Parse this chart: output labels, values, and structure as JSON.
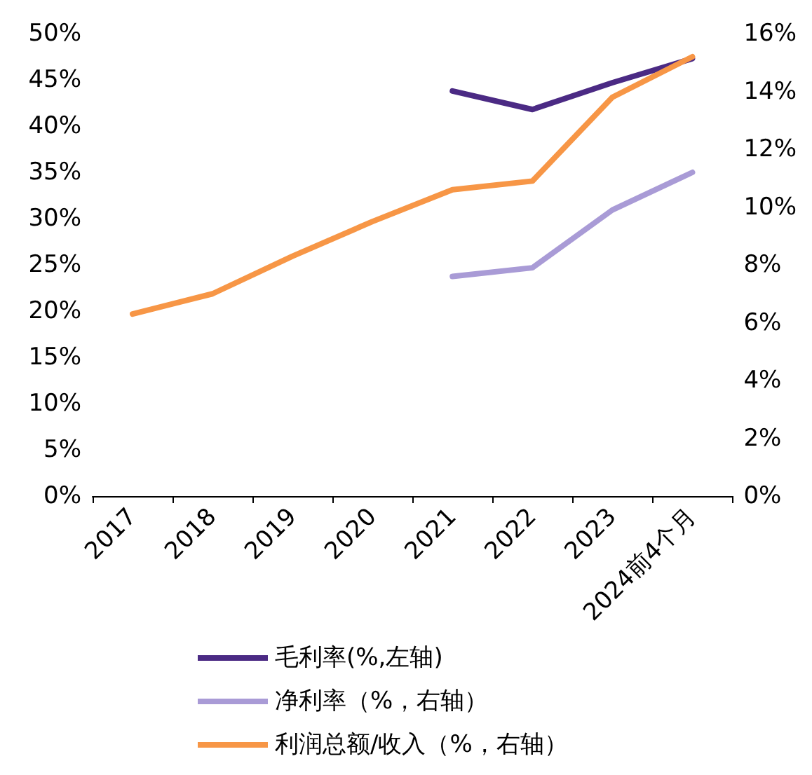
{
  "chart_data": {
    "type": "line",
    "categories": [
      "2017",
      "2018",
      "2019",
      "2020",
      "2021",
      "2022",
      "2023",
      "2024前4个月"
    ],
    "series": [
      {
        "name": "毛利率(%,左轴)",
        "color": "#4b2a84",
        "axis": "y",
        "values": [
          null,
          null,
          null,
          null,
          43.8,
          41.8,
          44.7,
          47.3
        ]
      },
      {
        "name": "净利率（%，右轴）",
        "color": "#a99bd6",
        "axis": "y2",
        "values": [
          null,
          null,
          null,
          null,
          7.6,
          7.9,
          9.9,
          11.2
        ]
      },
      {
        "name": "利润总额/收入（%，右轴）",
        "color": "#f79646",
        "axis": "y2",
        "values": [
          6.3,
          7.0,
          8.3,
          9.5,
          10.6,
          10.9,
          13.8,
          15.2
        ]
      }
    ],
    "ylim": [
      0,
      50
    ],
    "yticks": [
      {
        "value": 0,
        "label": "0%"
      },
      {
        "value": 5,
        "label": "5%"
      },
      {
        "value": 10,
        "label": "10%"
      },
      {
        "value": 15,
        "label": "15%"
      },
      {
        "value": 20,
        "label": "20%"
      },
      {
        "value": 25,
        "label": "25%"
      },
      {
        "value": 30,
        "label": "30%"
      },
      {
        "value": 35,
        "label": "35%"
      },
      {
        "value": 40,
        "label": "40%"
      },
      {
        "value": 45,
        "label": "45%"
      },
      {
        "value": 50,
        "label": "50%"
      }
    ],
    "y2lim": [
      0,
      16
    ],
    "y2ticks": [
      {
        "value": 0,
        "label": "0%"
      },
      {
        "value": 2,
        "label": "2%"
      },
      {
        "value": 4,
        "label": "4%"
      },
      {
        "value": 6,
        "label": "6%"
      },
      {
        "value": 8,
        "label": "8%"
      },
      {
        "value": 10,
        "label": "10%"
      },
      {
        "value": 12,
        "label": "12%"
      },
      {
        "value": 14,
        "label": "14%"
      },
      {
        "value": 16,
        "label": "16%"
      }
    ],
    "legend": "bottom",
    "grid": false,
    "marker": "none",
    "line_style": "solid"
  }
}
